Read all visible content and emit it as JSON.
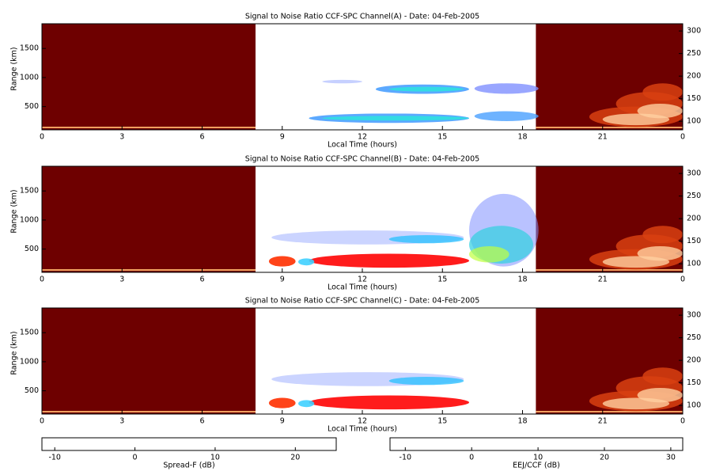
{
  "chart_data": [
    {
      "type": "heatmap",
      "title": "Signal to Noise Ratio CCF-SPC Channel(A) - Date: 04-Feb-2005",
      "xlabel": "Local Time (hours)",
      "ylabel": "Range (km)",
      "xlim": [
        0,
        24
      ],
      "xticks": [
        0,
        3,
        6,
        9,
        12,
        15,
        18,
        21,
        {
          "value": 24,
          "label": "0"
        }
      ],
      "ylim": [
        100,
        1925
      ],
      "yticks": [
        500,
        1000,
        1500
      ],
      "y2lim": [
        81,
        316
      ],
      "y2ticks": [
        100,
        150,
        200,
        250,
        300
      ]
    },
    {
      "type": "heatmap",
      "title": "Signal to Noise Ratio CCF-SPC Channel(B) - Date: 04-Feb-2005",
      "xlabel": "Local Time (hours)",
      "ylabel": "Range (km)",
      "xlim": [
        0,
        24
      ],
      "xticks": [
        0,
        3,
        6,
        9,
        12,
        15,
        18,
        21,
        {
          "value": 24,
          "label": "0"
        }
      ],
      "ylim": [
        100,
        1925
      ],
      "yticks": [
        500,
        1000,
        1500
      ],
      "y2lim": [
        81,
        316
      ],
      "y2ticks": [
        100,
        150,
        200,
        250,
        300
      ]
    },
    {
      "type": "heatmap",
      "title": "Signal to Noise Ratio CCF-SPC Channel(C) - Date: 04-Feb-2005",
      "xlabel": "Local Time (hours)",
      "ylabel": "Range (km)",
      "xlim": [
        0,
        24
      ],
      "xticks": [
        0,
        3,
        6,
        9,
        12,
        15,
        18,
        21,
        {
          "value": 24,
          "label": "0"
        }
      ],
      "ylim": [
        100,
        1925
      ],
      "yticks": [
        500,
        1000,
        1500
      ],
      "y2lim": [
        81,
        316
      ],
      "y2ticks": [
        100,
        150,
        200,
        250,
        300
      ]
    },
    {
      "type": "colorbar",
      "label": "Spread-F (dB)",
      "xlim": [
        -11.6,
        25.1
      ],
      "xticks": [
        -10,
        0,
        10,
        20
      ],
      "colors": [
        "#5a0000",
        "#8c0000",
        "#c02000",
        "#f06a10",
        "#ffb070",
        "#ffffff"
      ]
    },
    {
      "type": "colorbar",
      "label": "EEJ/CCF (dB)",
      "xlim": [
        -12.3,
        31.8
      ],
      "xticks": [
        -10,
        0,
        10,
        20,
        30
      ],
      "colors": [
        "#ffffff",
        "#6a6aff",
        "#00c8ff",
        "#00e0a0",
        "#b0ff30",
        "#ffff00",
        "#ff8000",
        "#ff0000"
      ]
    }
  ]
}
